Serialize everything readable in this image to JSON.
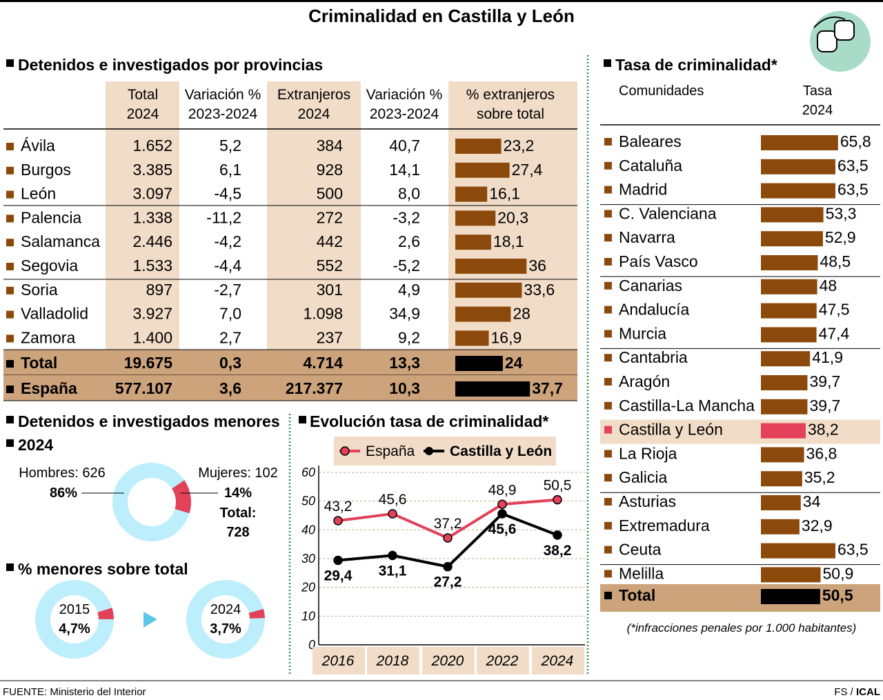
{
  "title": "Criminalidad en Castilla y León",
  "colors": {
    "bar": "#8b4a0c",
    "shade": "#f1dcc8",
    "total": "#cda37c",
    "highlight": "#e3405a",
    "donut": "#bdeefb",
    "espana": "#e3405a",
    "cyl": "#000000",
    "divider": "#2f8a4e"
  },
  "provincias": {
    "heading": "Detenidos e investigados por provincias",
    "headers": [
      [
        "Total",
        "2024"
      ],
      [
        "Variación %",
        "2023-2024"
      ],
      [
        "Extranjeros",
        "2024"
      ],
      [
        "Variación %",
        "2023-2024"
      ],
      [
        "% extranjeros",
        "sobre total"
      ]
    ],
    "rows": [
      [
        "Ávila",
        "1.652",
        "5,2",
        "384",
        "40,7",
        23.2,
        "23,2"
      ],
      [
        "Burgos",
        "3.385",
        "6,1",
        "928",
        "14,1",
        27.4,
        "27,4"
      ],
      [
        "León",
        "3.097",
        "-4,5",
        "500",
        "8,0",
        16.1,
        "16,1"
      ],
      [
        "Palencia",
        "1.338",
        "-11,2",
        "272",
        "-3,2",
        20.3,
        "20,3"
      ],
      [
        "Salamanca",
        "2.446",
        "-4,2",
        "442",
        "2,6",
        18.1,
        "18,1"
      ],
      [
        "Segovia",
        "1.533",
        "-4,4",
        "552",
        "-5,2",
        36,
        "36"
      ],
      [
        "Soria",
        "897",
        "-2,7",
        "301",
        "4,9",
        33.6,
        "33,6"
      ],
      [
        "Valladolid",
        "3.927",
        "7,0",
        "1.098",
        "34,9",
        28,
        "28"
      ],
      [
        "Zamora",
        "1.400",
        "2,7",
        "237",
        "9,2",
        16.9,
        "16,9"
      ]
    ],
    "totals": [
      [
        "Total",
        "19.675",
        "0,3",
        "4.714",
        "13,3",
        24,
        "24"
      ],
      [
        "España",
        "577.107",
        "3,6",
        "217.377",
        "10,3",
        37.7,
        "37,7"
      ]
    ]
  },
  "menores": {
    "heading": "Detenidos e investigados menores",
    "year": "2024",
    "hombres_label": "Hombres: 626",
    "hombres_pct": "86%",
    "hombres_value": 86,
    "mujeres_label": "Mujeres: 102",
    "mujeres_pct": "14%",
    "mujeres_value": 14,
    "total_label": "Total:",
    "total_value": "728",
    "pct_heading": "% menores sobre total",
    "donuts": [
      {
        "year": "2015",
        "label": "4,7%",
        "value": 4.7
      },
      {
        "year": "2024",
        "label": "3,7%",
        "value": 3.7
      }
    ]
  },
  "chart_data": {
    "type": "line",
    "title": "Evolución tasa de criminalidad*",
    "x": [
      "2016",
      "2018",
      "2020",
      "2022",
      "2024"
    ],
    "ylim": [
      0,
      60
    ],
    "yticks": [
      "0",
      "10",
      "20",
      "30",
      "40",
      "50",
      "60"
    ],
    "grid": true,
    "legend": "top",
    "series": [
      {
        "name": "España",
        "values": [
          43.2,
          45.6,
          37.2,
          48.9,
          50.5
        ],
        "labels": [
          "43,2",
          "45,6",
          "37,2",
          "48,9",
          "50,5"
        ]
      },
      {
        "name": "Castilla y León",
        "values": [
          29.4,
          31.1,
          27.2,
          45.6,
          38.2
        ],
        "labels": [
          "29,4",
          "31,1",
          "27,2",
          "45,6",
          "38,2"
        ]
      }
    ]
  },
  "tasa": {
    "heading": "Tasa de criminalidad*",
    "col1": "Comunidades",
    "col2a": "Tasa",
    "col2b": "2024",
    "rows": [
      [
        "Baleares",
        65.8,
        "65,8"
      ],
      [
        "Cataluña",
        63.5,
        "63,5"
      ],
      [
        "Madrid",
        63.5,
        "63,5"
      ],
      [
        "C. Valenciana",
        53.3,
        "53,3"
      ],
      [
        "Navarra",
        52.9,
        "52,9"
      ],
      [
        "País Vasco",
        48.5,
        "48,5"
      ],
      [
        "Canarias",
        48,
        "48"
      ],
      [
        "Andalucía",
        47.5,
        "47,5"
      ],
      [
        "Murcia",
        47.4,
        "47,4"
      ],
      [
        "Cantabria",
        41.9,
        "41,9"
      ],
      [
        "Aragón",
        39.7,
        "39,7"
      ],
      [
        "Castilla-La Mancha",
        39.7,
        "39,7"
      ],
      [
        "Castilla y León",
        38.2,
        "38,2"
      ],
      [
        "La Rioja",
        36.8,
        "36,8"
      ],
      [
        "Galicia",
        35.2,
        "35,2"
      ],
      [
        "Asturias",
        34,
        "34"
      ],
      [
        "Extremadura",
        32.9,
        "32,9"
      ],
      [
        "Ceuta",
        63.5,
        "63,5"
      ],
      [
        "Melilla",
        50.9,
        "50,9"
      ]
    ],
    "highlight": "Castilla y León",
    "total": [
      "Total",
      50.5,
      "50,5"
    ],
    "note": "(*infracciones penales por 1.000 habitantes)"
  },
  "footer": {
    "source": "FUENTE: Ministerio del Interior",
    "credit_a": "FS / ",
    "credit_b": "ICAL"
  },
  "logo_icon": "handcuffs-icon"
}
